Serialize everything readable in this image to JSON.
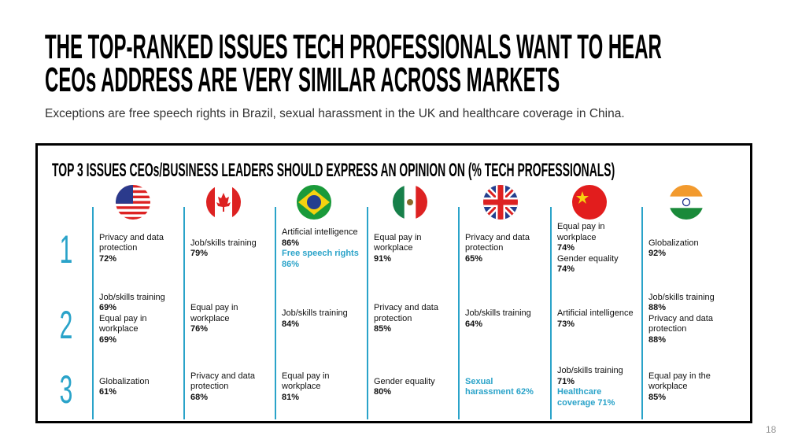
{
  "header": {
    "title_lines": [
      "THE TOP-RANKED ISSUES TECH PROFESSIONALS WANT TO HEAR",
      "CEOs ADDRESS ARE VERY SIMILAR ACROSS MARKETS"
    ],
    "subtitle": "Exceptions are free speech rights in Brazil, sexual harassment in the UK and healthcare coverage in China."
  },
  "table": {
    "title": "TOP 3 ISSUES CEOs/BUSINESS LEADERS SHOULD EXPRESS AN OPINION ON (% TECH PROFESSIONALS)",
    "ranks": [
      "1",
      "2",
      "3"
    ],
    "columns": [
      {
        "rows": [
          [
            {
              "label": "Privacy and data protection",
              "value": "72%"
            }
          ],
          [
            {
              "label": "Job/skills training",
              "value": "69%"
            },
            {
              "label": "Equal pay in workplace",
              "value": "69%"
            }
          ],
          [
            {
              "label": "Globalization",
              "value": "61%"
            }
          ]
        ]
      },
      {
        "rows": [
          [
            {
              "label": "Job/skills training",
              "value": "79%"
            }
          ],
          [
            {
              "label": "Equal pay in workplace",
              "value": "76%"
            }
          ],
          [
            {
              "label": "Privacy and data protection",
              "value": "68%"
            }
          ]
        ]
      },
      {
        "rows": [
          [
            {
              "label": "Artificial intelligence",
              "value": "86%"
            },
            {
              "label": "Free speech rights",
              "value": "86%",
              "highlight": true
            }
          ],
          [
            {
              "label": "Job/skills training",
              "value": "84%"
            }
          ],
          [
            {
              "label": "Equal pay in workplace",
              "value": "81%"
            }
          ]
        ]
      },
      {
        "rows": [
          [
            {
              "label": "Equal pay in workplace",
              "value": "91%"
            }
          ],
          [
            {
              "label": "Privacy and data protection",
              "value": "85%"
            }
          ],
          [
            {
              "label": "Gender equality",
              "value": "80%"
            }
          ]
        ]
      },
      {
        "rows": [
          [
            {
              "label": "Privacy and data protection",
              "value": "65%"
            }
          ],
          [
            {
              "label": "Job/skills training",
              "value": "64%"
            }
          ],
          [
            {
              "label": "Sexual harassment",
              "value": "62%",
              "highlight": true
            }
          ]
        ]
      },
      {
        "rows": [
          [
            {
              "label": "Equal pay in workplace",
              "value": "74%"
            },
            {
              "label": "Gender equality",
              "value": "74%"
            }
          ],
          [
            {
              "label": "Artificial intelligence",
              "value": "73%"
            }
          ],
          [
            {
              "label": "Job/skills training",
              "value": "71%"
            },
            {
              "label": "Healthcare coverage",
              "value": "71%",
              "highlight": true
            }
          ]
        ]
      },
      {
        "rows": [
          [
            {
              "label": "Globalization",
              "value": "92%"
            }
          ],
          [
            {
              "label": "Job/skills training",
              "value": "88%"
            },
            {
              "label": "Privacy and data protection",
              "value": "88%"
            }
          ],
          [
            {
              "label": "Equal pay in the workplace",
              "value": "85%"
            }
          ]
        ]
      }
    ]
  },
  "footer": {
    "page_number": "18"
  }
}
